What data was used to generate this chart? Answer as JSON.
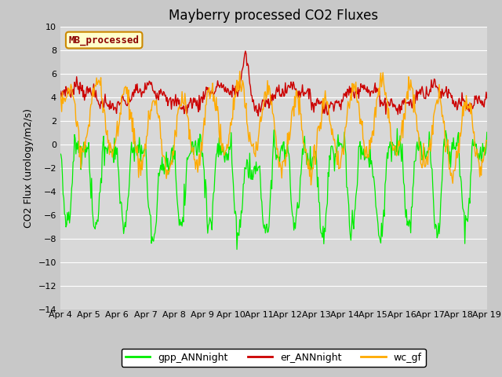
{
  "title": "Mayberry processed CO2 Fluxes",
  "ylabel": "CO2 Flux (urology/m2/s)",
  "ylim": [
    -14,
    10
  ],
  "yticks": [
    -14,
    -12,
    -10,
    -8,
    -6,
    -4,
    -2,
    0,
    2,
    4,
    6,
    8,
    10
  ],
  "xticklabels": [
    "Apr 4",
    "Apr 5",
    "Apr 6",
    "Apr 7",
    "Apr 8",
    "Apr 9",
    "Apr 10",
    "Apr 11",
    "Apr 12",
    "Apr 13",
    "Apr 14",
    "Apr 15",
    "Apr 16",
    "Apr 17",
    "Apr 18",
    "Apr 19"
  ],
  "legend_labels": [
    "gpp_ANNnight",
    "er_ANNnight",
    "wc_gf"
  ],
  "line_colors": [
    "#00ee00",
    "#cc0000",
    "#ffaa00"
  ],
  "legend_loc": "lower center",
  "legend_ncol": 3,
  "watermark_text": "MB_processed",
  "watermark_color": "#8b0000",
  "watermark_bg": "#ffffcc",
  "watermark_border": "#cc8800",
  "fig_bg": "#c8c8c8",
  "plot_bg": "#d8d8d8",
  "title_fontsize": 12,
  "axis_fontsize": 9,
  "tick_fontsize": 8,
  "n_points": 600,
  "seed": 7
}
